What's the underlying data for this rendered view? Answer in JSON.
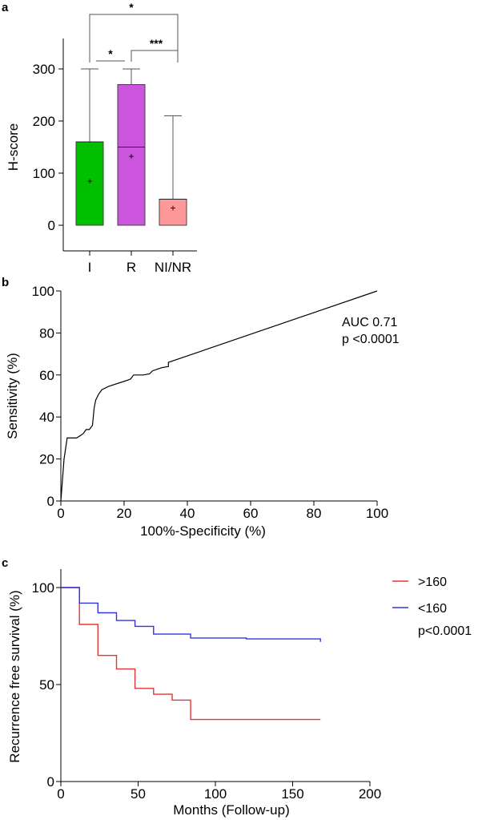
{
  "chart_data": [
    {
      "panel": "a",
      "type": "box",
      "ylabel": "H-score",
      "ylim": [
        0,
        300
      ],
      "yticks": [
        0,
        100,
        200,
        300
      ],
      "categories": [
        "I",
        "R",
        "NI/NR"
      ],
      "boxes": [
        {
          "name": "I",
          "min": 0,
          "q1": 0,
          "median": 160,
          "q3": 160,
          "max": 300,
          "mean": 85,
          "color": "#00c000"
        },
        {
          "name": "R",
          "min": 0,
          "q1": 0,
          "median": 150,
          "q3": 270,
          "max": 300,
          "mean": 132,
          "color": "#cc55dd"
        },
        {
          "name": "NI/NR",
          "min": 0,
          "q1": 0,
          "median": 50,
          "q3": 50,
          "max": 210,
          "mean": 33,
          "color": "#ff9999"
        }
      ],
      "significance": [
        {
          "from": "I",
          "to": "R",
          "label": "*"
        },
        {
          "from": "R",
          "to": "NI/NR",
          "label": "***"
        },
        {
          "from": "I",
          "to": "NI/NR",
          "label": "*"
        }
      ]
    },
    {
      "panel": "b",
      "type": "line",
      "xlabel": "100%-Specificity (%)",
      "ylabel": "Sensitivity (%)",
      "xlim": [
        0,
        100
      ],
      "ylim": [
        0,
        100
      ],
      "xticks": [
        0,
        20,
        40,
        60,
        80,
        100
      ],
      "yticks": [
        0,
        20,
        40,
        60,
        80,
        100
      ],
      "annotations": [
        "AUC 0.71",
        "p <0.0001"
      ],
      "x": [
        0,
        1,
        2,
        4,
        5,
        7,
        8,
        9,
        10,
        10.5,
        11,
        12,
        13,
        15,
        17,
        19,
        21,
        22,
        23,
        24,
        26,
        28,
        29,
        31,
        32,
        34,
        34,
        100
      ],
      "y": [
        0,
        20,
        30,
        30,
        30,
        32,
        34,
        34,
        36,
        44,
        48,
        51,
        53,
        54.5,
        55.5,
        56.5,
        57.5,
        58,
        60,
        60,
        60,
        60.5,
        62,
        63,
        63.5,
        64,
        66,
        100
      ]
    },
    {
      "panel": "c",
      "type": "line",
      "step": true,
      "xlabel": "Months (Follow-up)",
      "ylabel": "Recurrence free survival (%)",
      "xlim": [
        0,
        200
      ],
      "ylim": [
        0,
        100
      ],
      "xticks": [
        0,
        50,
        100,
        150,
        200
      ],
      "yticks": [
        0,
        50,
        100
      ],
      "legend_position": "right",
      "annotations": [
        "p<0.0001"
      ],
      "series": [
        {
          "name": ">160",
          "color": "#e53333",
          "x": [
            0,
            12,
            24,
            36,
            48,
            60,
            72,
            84,
            168
          ],
          "y": [
            100,
            81,
            65,
            58,
            48,
            45,
            42,
            32,
            32
          ]
        },
        {
          "name": "<160",
          "color": "#3333dd",
          "x": [
            0,
            12,
            24,
            36,
            48,
            60,
            84,
            120,
            168
          ],
          "y": [
            100,
            92,
            87,
            83,
            80,
            76,
            74,
            73.5,
            72
          ]
        }
      ]
    }
  ]
}
